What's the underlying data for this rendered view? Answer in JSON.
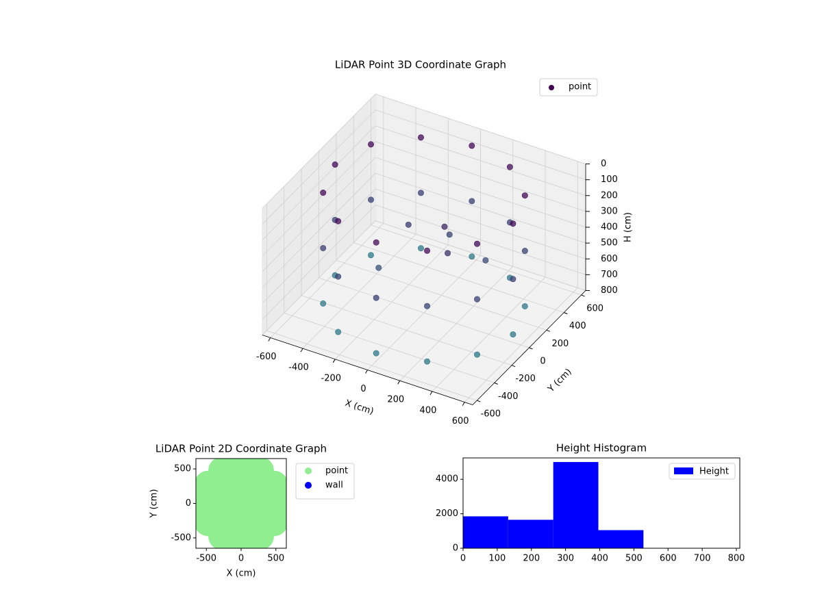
{
  "chart_data": [
    {
      "type": "scatter3d",
      "title": "LiDAR Point 3D Coordinate Graph",
      "xlabel": "X (cm)",
      "ylabel": "Y (cm)",
      "zlabel": "H (cm)",
      "xlim": [
        -650,
        650
      ],
      "ylim": [
        -650,
        650
      ],
      "zlim": [
        0,
        800
      ],
      "z_inverted": true,
      "xticks": [
        -600,
        -400,
        -200,
        0,
        200,
        400,
        600
      ],
      "yticks": [
        -600,
        -400,
        -200,
        0,
        200,
        400,
        600
      ],
      "zticks": [
        0,
        100,
        200,
        300,
        400,
        500,
        600,
        700,
        800
      ],
      "cmap": [
        "#440154",
        "#2c7f8e"
      ],
      "legend_loc": "upper right",
      "grid": true,
      "series": [
        {
          "name": "point",
          "x": [
            550,
            476,
            275,
            0,
            -275,
            -476,
            -550,
            -476,
            -275,
            0,
            275,
            476,
            550,
            476,
            275,
            0,
            -275,
            -476,
            -550,
            -476,
            -275,
            0,
            275,
            476,
            550,
            476,
            275,
            0,
            -275,
            -476,
            -550,
            -476,
            -275,
            0,
            275,
            476,
            100,
            200,
            -150,
            50,
            300,
            -200
          ],
          "y": [
            0,
            275,
            476,
            550,
            476,
            275,
            0,
            -275,
            -476,
            -550,
            -476,
            -275,
            0,
            275,
            476,
            550,
            476,
            275,
            0,
            -275,
            -476,
            -550,
            -476,
            -275,
            0,
            275,
            476,
            550,
            476,
            275,
            0,
            -275,
            -476,
            -550,
            -476,
            -275,
            50,
            -100,
            100,
            200,
            150,
            -150
          ],
          "z": [
            50,
            50,
            50,
            50,
            50,
            50,
            50,
            50,
            50,
            50,
            50,
            50,
            400,
            400,
            400,
            400,
            400,
            400,
            400,
            400,
            400,
            400,
            400,
            400,
            750,
            750,
            750,
            750,
            750,
            750,
            750,
            750,
            750,
            750,
            750,
            750,
            250,
            300,
            350,
            400,
            450,
            500
          ]
        }
      ]
    },
    {
      "type": "scatter",
      "title": "LiDAR Point 2D Coordinate Graph",
      "xlabel": "X (cm)",
      "ylabel": "Y (cm)",
      "xlim": [
        -650,
        650
      ],
      "ylim": [
        -650,
        650
      ],
      "xticks": [
        -500,
        0,
        500
      ],
      "yticks": [
        -500,
        0,
        500
      ],
      "legend_loc": "outside right",
      "series": [
        {
          "name": "point",
          "color": "#90ee90",
          "x": [
            550,
            476,
            275,
            0,
            -275,
            -476,
            -550,
            -476,
            -275,
            0,
            275,
            476,
            350,
            247,
            0,
            -247,
            -350,
            -247,
            0,
            247,
            150,
            0,
            -150,
            0,
            0
          ],
          "y": [
            0,
            275,
            476,
            550,
            476,
            275,
            0,
            -275,
            -476,
            -550,
            -476,
            -275,
            0,
            247,
            350,
            247,
            0,
            -247,
            -350,
            -247,
            0,
            150,
            0,
            -150,
            0
          ]
        },
        {
          "name": "wall",
          "color": "#0000ff",
          "x": [],
          "y": []
        }
      ]
    },
    {
      "type": "histogram",
      "title": "Height Histogram",
      "name": "Height",
      "color": "#0000ff",
      "bins": [
        0,
        132,
        264,
        396,
        528,
        660,
        792
      ],
      "values": [
        1850,
        1650,
        5000,
        1050,
        15,
        10
      ],
      "xlim": [
        0,
        810
      ],
      "ylim": [
        0,
        5240
      ],
      "xticks": [
        0,
        100,
        200,
        300,
        400,
        500,
        600,
        700,
        800
      ],
      "yticks": [
        0,
        2000,
        4000
      ],
      "legend_loc": "upper right"
    }
  ]
}
